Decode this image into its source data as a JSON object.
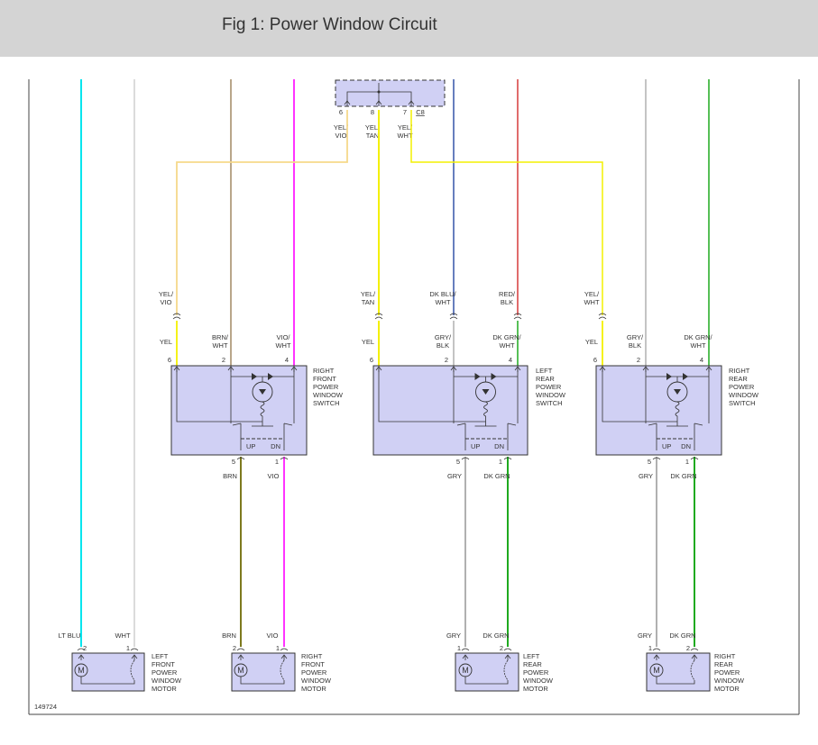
{
  "header": {
    "title": "Fig 1: Power Window Circuit"
  },
  "figure_id": "149724",
  "colors": {
    "component_fill": "#d0d0f4",
    "LT BLU": "#00e5ee",
    "WHT": "#cfcfcf",
    "BRN": "#8a6b3c",
    "BRN_OLIVE": "#7d7a1e",
    "VIO": "#ff33ff",
    "YEL": "#f4f000",
    "DK BLU": "#3553a8",
    "RED": "#d63b3b",
    "GRY": "#b0b0b0",
    "DK GRN": "#1faa1f",
    "YEL/VIO": "#f6d98a"
  },
  "connector": {
    "name": "C8",
    "pins": [
      {
        "num": "6",
        "wire": "YEL/",
        "wire2": "VIO"
      },
      {
        "num": "8",
        "wire": "YEL/",
        "wire2": "TAN"
      },
      {
        "num": "7",
        "wire": "YEL/",
        "wire2": "WHT"
      }
    ]
  },
  "switches": [
    {
      "label_lines": [
        "RIGHT",
        "FRONT",
        "POWER",
        "WINDOW",
        "SWITCH"
      ],
      "up": "UP",
      "dn": "DN",
      "top_wires": [
        {
          "above": [
            "YEL/",
            "VIO"
          ],
          "below": [
            "YEL"
          ],
          "pin": "6"
        },
        {
          "above": [],
          "below": [
            "BRN/",
            "WHT"
          ],
          "pin": "2"
        },
        {
          "above": [],
          "below": [
            "VIO/",
            "WHT"
          ],
          "pin": "4"
        }
      ],
      "bottom_wires": [
        {
          "pin": "5",
          "wire": "BRN"
        },
        {
          "pin": "1",
          "wire": "VIO"
        }
      ]
    },
    {
      "label_lines": [
        "LEFT",
        "REAR",
        "POWER",
        "WINDOW",
        "SWITCH"
      ],
      "up": "UP",
      "dn": "DN",
      "top_wires": [
        {
          "above": [
            "YEL/",
            "TAN"
          ],
          "below": [
            "YEL"
          ],
          "pin": "6"
        },
        {
          "above": [
            "DK BLU/",
            "WHT"
          ],
          "below": [
            "GRY/",
            "BLK"
          ],
          "pin": "2"
        },
        {
          "above": [
            "RED/",
            "BLK"
          ],
          "below": [
            "DK GRN/",
            "WHT"
          ],
          "pin": "4"
        }
      ],
      "bottom_wires": [
        {
          "pin": "5",
          "wire": "GRY"
        },
        {
          "pin": "1",
          "wire": "DK GRN"
        }
      ]
    },
    {
      "label_lines": [
        "RIGHT",
        "REAR",
        "POWER",
        "WINDOW",
        "SWITCH"
      ],
      "up": "UP",
      "dn": "DN",
      "top_wires": [
        {
          "above": [
            "YEL/",
            "WHT"
          ],
          "below": [
            "YEL"
          ],
          "pin": "6"
        },
        {
          "above": [],
          "below": [
            "GRY/",
            "BLK"
          ],
          "pin": "2"
        },
        {
          "above": [],
          "below": [
            "DK GRN/",
            "WHT"
          ],
          "pin": "4"
        }
      ],
      "bottom_wires": [
        {
          "pin": "5",
          "wire": "GRY"
        },
        {
          "pin": "1",
          "wire": "DK GRN"
        }
      ]
    }
  ],
  "motors": [
    {
      "label_lines": [
        "LEFT",
        "FRONT",
        "POWER",
        "WINDOW",
        "MOTOR"
      ],
      "symbol": "M",
      "wires": [
        {
          "pin": "2",
          "wire": "LT BLU"
        },
        {
          "pin": "1",
          "wire": "WHT"
        }
      ]
    },
    {
      "label_lines": [
        "RIGHT",
        "FRONT",
        "POWER",
        "WINDOW",
        "MOTOR"
      ],
      "symbol": "M",
      "wires": [
        {
          "pin": "2",
          "wire": "BRN"
        },
        {
          "pin": "1",
          "wire": "VIO"
        }
      ]
    },
    {
      "label_lines": [
        "LEFT",
        "REAR",
        "POWER",
        "WINDOW",
        "MOTOR"
      ],
      "symbol": "M",
      "wires": [
        {
          "pin": "1",
          "wire": "GRY"
        },
        {
          "pin": "2",
          "wire": "DK GRN"
        }
      ]
    },
    {
      "label_lines": [
        "RIGHT",
        "REAR",
        "POWER",
        "WINDOW",
        "MOTOR"
      ],
      "symbol": "M",
      "wires": [
        {
          "pin": "1",
          "wire": "GRY"
        },
        {
          "pin": "2",
          "wire": "DK GRN"
        }
      ]
    }
  ]
}
